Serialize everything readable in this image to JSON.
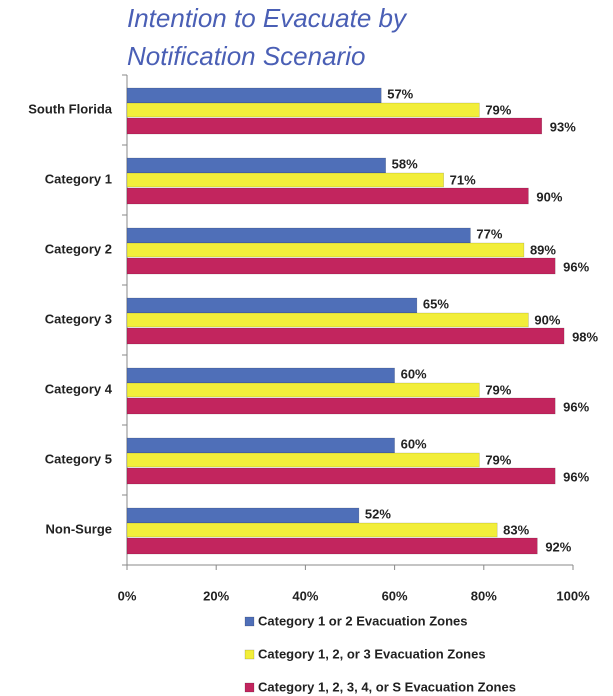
{
  "chart_data": {
    "type": "hbar",
    "title": [
      "Intention to Evacuate by",
      "Notification Scenario"
    ],
    "categories": [
      "South Florida",
      "Category 1",
      "Category 2",
      "Category 3",
      "Category 4",
      "Category 5",
      "Non-Surge"
    ],
    "series": [
      {
        "name": "Category 1 or 2 Evacuation Zones",
        "color": "#4f6fb8",
        "values": [
          57,
          58,
          77,
          65,
          60,
          60,
          52
        ],
        "value_labels": [
          "57%",
          "58%",
          "77%",
          "65%",
          "60%",
          "60%",
          "52%"
        ]
      },
      {
        "name": "Category 1, 2, or 3 Evacuation Zones",
        "color": "#f2ee3a",
        "values": [
          79,
          71,
          89,
          90,
          79,
          79,
          83
        ],
        "value_labels": [
          "79%",
          "71%",
          "89%",
          "90%",
          "79%",
          "79%",
          "83%"
        ]
      },
      {
        "name": "Category 1, 2, 3, 4, or S Evacuation Zones",
        "color": "#c2255e",
        "values": [
          93,
          90,
          96,
          98,
          96,
          96,
          92
        ],
        "value_labels": [
          "93%",
          "90%",
          "96%",
          "98%",
          "96%",
          "96%",
          "92%"
        ]
      }
    ],
    "xlim": [
      0,
      100
    ],
    "xticks": [
      {
        "value": 0,
        "label": "0%"
      },
      {
        "value": 20,
        "label": "20%"
      },
      {
        "value": 40,
        "label": "40%"
      },
      {
        "value": 60,
        "label": "60%"
      },
      {
        "value": 80,
        "label": "80%"
      },
      {
        "value": 100,
        "label": "100%"
      }
    ],
    "legend": "bottom"
  }
}
